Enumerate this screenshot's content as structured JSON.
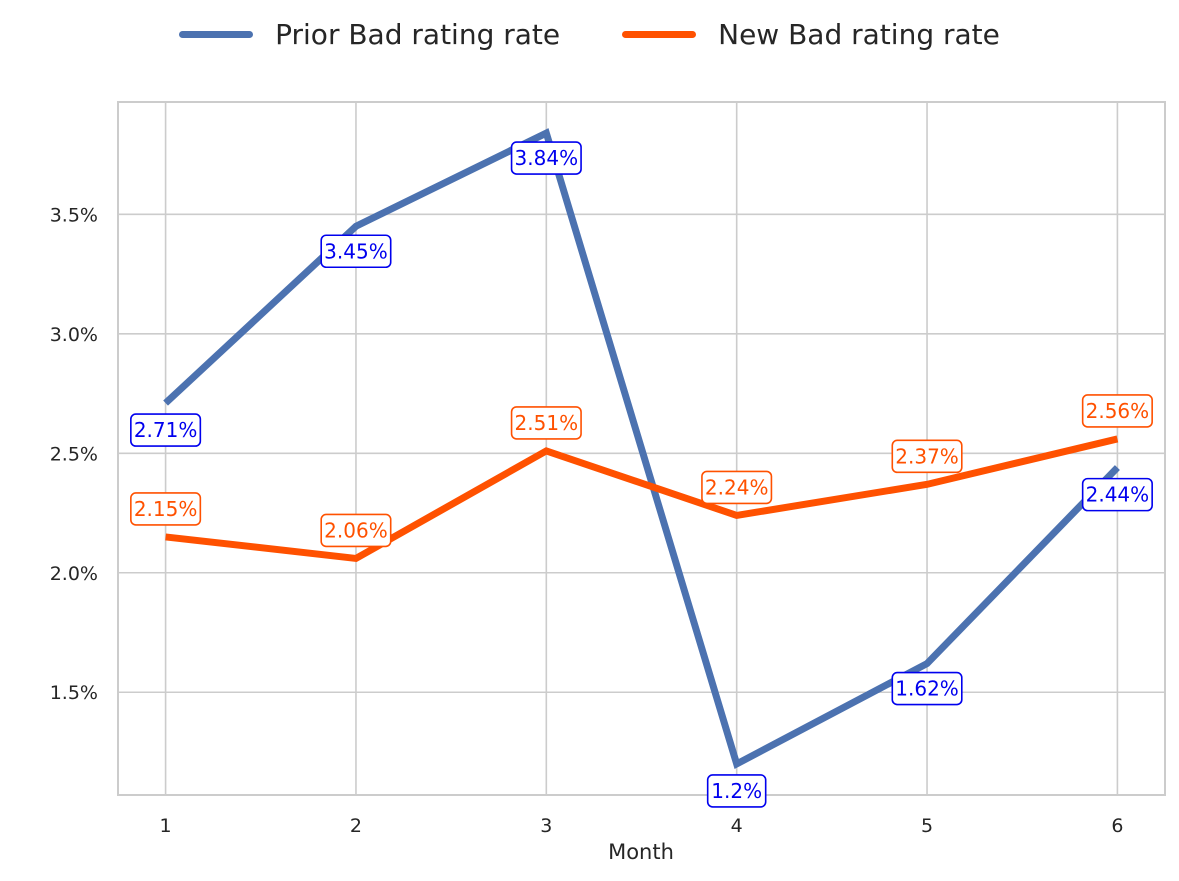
{
  "chart_data": {
    "type": "line",
    "title": "",
    "xlabel": "Month",
    "ylabel": "",
    "categories": [
      1,
      2,
      3,
      4,
      5,
      6
    ],
    "xlim": [
      0.75,
      6.25
    ],
    "ylim": [
      1.07,
      3.97
    ],
    "yticks": [
      1.5,
      2.0,
      2.5,
      3.0,
      3.5
    ],
    "ytick_labels": [
      "1.5%",
      "2.0%",
      "2.5%",
      "3.0%",
      "3.5%"
    ],
    "grid": true,
    "legend_position": "top-center",
    "series": [
      {
        "name": "Prior Bad rating rate",
        "color": "#4c72b0",
        "label_color": "#0000ee",
        "values": [
          2.71,
          3.45,
          3.84,
          1.2,
          1.62,
          2.44
        ],
        "data_labels": [
          "2.71%",
          "3.45%",
          "3.84%",
          "1.2%",
          "1.62%",
          "2.44%"
        ]
      },
      {
        "name": "New Bad rating rate",
        "color": "#ff5100",
        "label_color": "#ff5100",
        "values": [
          2.15,
          2.06,
          2.51,
          2.24,
          2.37,
          2.56
        ],
        "data_labels": [
          "2.15%",
          "2.06%",
          "2.51%",
          "2.24%",
          "2.37%",
          "2.56%"
        ]
      }
    ]
  }
}
